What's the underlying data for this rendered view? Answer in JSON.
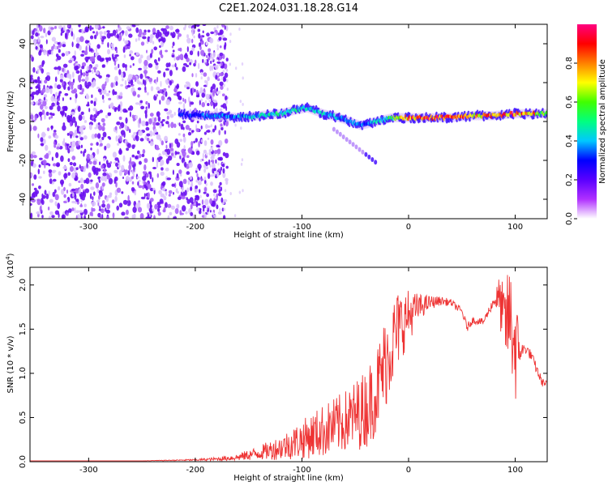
{
  "title": "C2E1.2024.031.18.28.G14",
  "chart_data": [
    {
      "type": "heatmap",
      "title": "C2E1.2024.031.18.28.G14",
      "xlabel": "Height of straight line (km)",
      "ylabel": "Frequency (Hz)",
      "xlim": [
        -355,
        130
      ],
      "ylim": [
        -50,
        50
      ],
      "x_ticks": [
        -300,
        -200,
        -100,
        0,
        100
      ],
      "x_tick_labels": [
        "-300",
        "-200",
        "-100",
        "0",
        "100"
      ],
      "y_ticks": [
        -40,
        -20,
        0,
        20,
        40
      ],
      "y_tick_labels": [
        "-40",
        "-20",
        "0",
        "20",
        "40"
      ],
      "colorbar": {
        "label": "Normalized spectral amplitude",
        "range": [
          0.0,
          1.0
        ],
        "ticks": [
          0.0,
          0.2,
          0.4,
          0.6,
          0.8
        ],
        "tick_labels": [
          "0.0",
          "0.2",
          "0.4",
          "0.6",
          "0.8"
        ],
        "colors": [
          "#ffffff",
          "#b030ff",
          "#5a00ff",
          "#0000ff",
          "#00c8ff",
          "#00ff80",
          "#40ff00",
          "#ffff00",
          "#ff8000",
          "#ff0000",
          "#ff0080"
        ]
      },
      "signal_track": {
        "x": [
          -215,
          -200,
          -180,
          -160,
          -140,
          -120,
          -105,
          -95,
          -80,
          -65,
          -55,
          -45,
          -30,
          -15,
          0,
          20,
          40,
          60,
          80,
          100,
          115,
          130
        ],
        "freq": [
          4,
          3,
          3,
          2,
          3,
          4,
          6,
          7,
          4,
          2,
          0,
          -2,
          0,
          2,
          2,
          2,
          2,
          3,
          3,
          4,
          4,
          4
        ],
        "amplitude": [
          0.3,
          0.35,
          0.4,
          0.4,
          0.45,
          0.5,
          0.5,
          0.45,
          0.45,
          0.4,
          0.4,
          0.35,
          0.45,
          0.6,
          0.85,
          0.95,
          0.9,
          0.8,
          0.85,
          0.9,
          0.85,
          0.6
        ]
      },
      "noise_region": {
        "x_range": [
          -355,
          -190
        ],
        "amplitude": 0.1
      }
    },
    {
      "type": "line",
      "xlabel": "Height of straight line (km)",
      "ylabel": "SNR (10 * v/v)",
      "y_scale_label": "(x10",
      "y_scale_exponent": "4",
      "y_scale_suffix": ")",
      "xlim": [
        -355,
        130
      ],
      "ylim": [
        0.0,
        2.2
      ],
      "x_ticks": [
        -300,
        -200,
        -100,
        0,
        100
      ],
      "x_tick_labels": [
        "-300",
        "-200",
        "-100",
        "0",
        "100"
      ],
      "y_ticks": [
        0.0,
        0.5,
        1.0,
        1.5,
        2.0
      ],
      "y_tick_labels": [
        "0.0",
        "0.5",
        "1.0",
        "1.5",
        "2.0"
      ],
      "color": "#ee3333",
      "series": [
        {
          "x": [
            -355,
            -300,
            -250,
            -200,
            -180,
            -160,
            -140,
            -120,
            -100,
            -80,
            -60,
            -40,
            -30,
            -20,
            -10,
            0,
            10,
            20,
            30,
            40,
            50,
            55,
            60,
            70,
            80,
            85,
            90,
            95,
            100,
            105,
            110,
            115,
            120,
            125,
            130
          ],
          "y": [
            0.01,
            0.01,
            0.01,
            0.02,
            0.03,
            0.05,
            0.1,
            0.16,
            0.25,
            0.35,
            0.45,
            0.6,
            0.8,
            1.2,
            1.5,
            1.65,
            1.75,
            1.8,
            1.82,
            1.8,
            1.7,
            1.52,
            1.6,
            1.58,
            1.82,
            1.85,
            1.55,
            1.65,
            1.3,
            1.25,
            1.28,
            1.2,
            1.05,
            0.9,
            0.88
          ],
          "y_noise": [
            0.0,
            0.0,
            0.0,
            0.01,
            0.02,
            0.04,
            0.08,
            0.14,
            0.22,
            0.3,
            0.35,
            0.45,
            0.5,
            0.55,
            0.45,
            0.3,
            0.15,
            0.08,
            0.05,
            0.04,
            0.04,
            0.05,
            0.04,
            0.04,
            0.06,
            0.25,
            0.45,
            0.6,
            0.7,
            0.1,
            0.06,
            0.06,
            0.06,
            0.05,
            0.03
          ]
        }
      ]
    }
  ]
}
